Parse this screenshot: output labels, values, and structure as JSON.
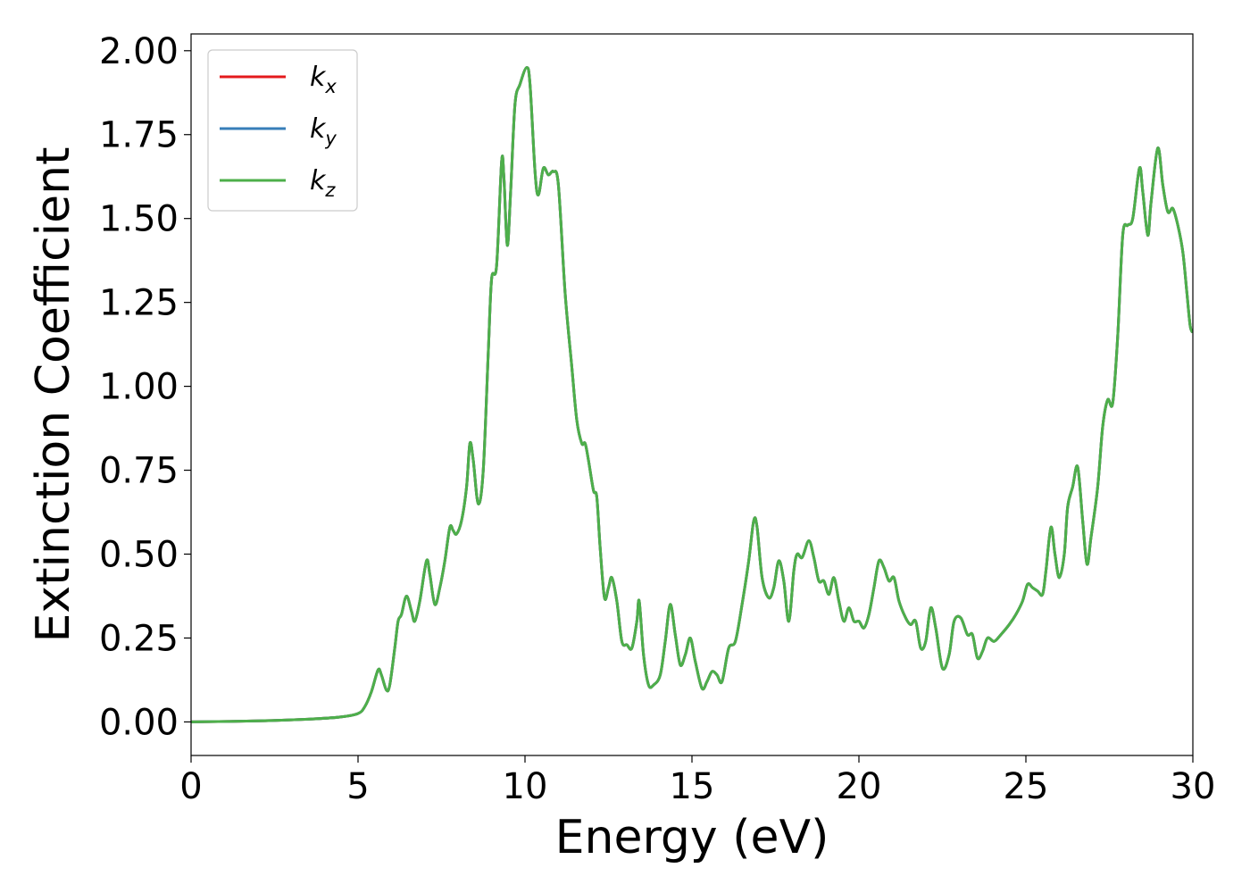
{
  "chart_data": {
    "type": "line",
    "title": "",
    "xlabel": "Energy (eV)",
    "ylabel": "Extinction Coefficient",
    "xlim": [
      0,
      30
    ],
    "ylim": [
      -0.1,
      2.05
    ],
    "xticks": [
      0,
      5,
      10,
      15,
      20,
      25,
      30
    ],
    "xtick_labels": [
      "0",
      "5",
      "10",
      "15",
      "20",
      "25",
      "30"
    ],
    "yticks": [
      0.0,
      0.25,
      0.5,
      0.75,
      1.0,
      1.25,
      1.5,
      1.75,
      2.0
    ],
    "ytick_labels": [
      "0.00",
      "0.25",
      "0.50",
      "0.75",
      "1.00",
      "1.25",
      "1.50",
      "1.75",
      "2.00"
    ],
    "grid": false,
    "legend_position": "upper-left",
    "series": [
      {
        "name": "k",
        "subscript": "x",
        "color": "#e41a1c",
        "values_same_as": "kz"
      },
      {
        "name": "k",
        "subscript": "y",
        "color": "#377eb8",
        "values_same_as": "kz"
      },
      {
        "name": "k",
        "subscript": "z",
        "color": "#4daf4a",
        "values_same_as": "kz"
      }
    ],
    "points": [
      [
        0.0,
        0.0
      ],
      [
        2.0,
        0.003
      ],
      [
        3.5,
        0.008
      ],
      [
        4.5,
        0.015
      ],
      [
        5.0,
        0.025
      ],
      [
        5.2,
        0.045
      ],
      [
        5.4,
        0.09
      ],
      [
        5.6,
        0.155
      ],
      [
        5.7,
        0.14
      ],
      [
        5.85,
        0.095
      ],
      [
        5.95,
        0.11
      ],
      [
        6.1,
        0.22
      ],
      [
        6.2,
        0.3
      ],
      [
        6.3,
        0.32
      ],
      [
        6.45,
        0.375
      ],
      [
        6.6,
        0.33
      ],
      [
        6.7,
        0.3
      ],
      [
        6.85,
        0.36
      ],
      [
        7.05,
        0.48
      ],
      [
        7.15,
        0.44
      ],
      [
        7.3,
        0.35
      ],
      [
        7.45,
        0.4
      ],
      [
        7.6,
        0.48
      ],
      [
        7.75,
        0.58
      ],
      [
        7.85,
        0.57
      ],
      [
        7.95,
        0.56
      ],
      [
        8.1,
        0.6
      ],
      [
        8.25,
        0.7
      ],
      [
        8.35,
        0.83
      ],
      [
        8.45,
        0.78
      ],
      [
        8.6,
        0.65
      ],
      [
        8.75,
        0.75
      ],
      [
        8.9,
        1.1
      ],
      [
        9.0,
        1.32
      ],
      [
        9.15,
        1.36
      ],
      [
        9.3,
        1.67
      ],
      [
        9.37,
        1.62
      ],
      [
        9.47,
        1.42
      ],
      [
        9.57,
        1.58
      ],
      [
        9.7,
        1.84
      ],
      [
        9.85,
        1.9
      ],
      [
        10.05,
        1.95
      ],
      [
        10.15,
        1.9
      ],
      [
        10.3,
        1.64
      ],
      [
        10.4,
        1.57
      ],
      [
        10.55,
        1.65
      ],
      [
        10.7,
        1.63
      ],
      [
        10.85,
        1.64
      ],
      [
        11.0,
        1.6
      ],
      [
        11.2,
        1.28
      ],
      [
        11.4,
        1.06
      ],
      [
        11.55,
        0.9
      ],
      [
        11.7,
        0.83
      ],
      [
        11.8,
        0.83
      ],
      [
        11.9,
        0.78
      ],
      [
        12.05,
        0.69
      ],
      [
        12.15,
        0.67
      ],
      [
        12.25,
        0.52
      ],
      [
        12.38,
        0.37
      ],
      [
        12.5,
        0.4
      ],
      [
        12.6,
        0.43
      ],
      [
        12.75,
        0.36
      ],
      [
        12.9,
        0.24
      ],
      [
        13.05,
        0.23
      ],
      [
        13.2,
        0.22
      ],
      [
        13.35,
        0.3
      ],
      [
        13.42,
        0.36
      ],
      [
        13.55,
        0.2
      ],
      [
        13.7,
        0.11
      ],
      [
        13.85,
        0.11
      ],
      [
        14.05,
        0.14
      ],
      [
        14.2,
        0.24
      ],
      [
        14.35,
        0.35
      ],
      [
        14.5,
        0.26
      ],
      [
        14.65,
        0.17
      ],
      [
        14.8,
        0.2
      ],
      [
        14.95,
        0.25
      ],
      [
        15.1,
        0.18
      ],
      [
        15.3,
        0.1
      ],
      [
        15.45,
        0.12
      ],
      [
        15.6,
        0.15
      ],
      [
        15.75,
        0.14
      ],
      [
        15.9,
        0.12
      ],
      [
        16.1,
        0.22
      ],
      [
        16.3,
        0.24
      ],
      [
        16.5,
        0.35
      ],
      [
        16.7,
        0.48
      ],
      [
        16.85,
        0.6
      ],
      [
        16.95,
        0.58
      ],
      [
        17.1,
        0.43
      ],
      [
        17.3,
        0.37
      ],
      [
        17.45,
        0.4
      ],
      [
        17.6,
        0.48
      ],
      [
        17.75,
        0.42
      ],
      [
        17.9,
        0.3
      ],
      [
        18.05,
        0.45
      ],
      [
        18.15,
        0.5
      ],
      [
        18.3,
        0.49
      ],
      [
        18.5,
        0.54
      ],
      [
        18.65,
        0.49
      ],
      [
        18.8,
        0.42
      ],
      [
        18.95,
        0.42
      ],
      [
        19.1,
        0.38
      ],
      [
        19.25,
        0.43
      ],
      [
        19.4,
        0.36
      ],
      [
        19.55,
        0.3
      ],
      [
        19.7,
        0.34
      ],
      [
        19.85,
        0.3
      ],
      [
        20.0,
        0.3
      ],
      [
        20.15,
        0.28
      ],
      [
        20.3,
        0.32
      ],
      [
        20.45,
        0.4
      ],
      [
        20.6,
        0.48
      ],
      [
        20.75,
        0.46
      ],
      [
        20.9,
        0.42
      ],
      [
        21.05,
        0.43
      ],
      [
        21.2,
        0.36
      ],
      [
        21.4,
        0.31
      ],
      [
        21.55,
        0.29
      ],
      [
        21.7,
        0.3
      ],
      [
        21.85,
        0.22
      ],
      [
        22.0,
        0.24
      ],
      [
        22.15,
        0.34
      ],
      [
        22.3,
        0.28
      ],
      [
        22.5,
        0.16
      ],
      [
        22.7,
        0.2
      ],
      [
        22.85,
        0.3
      ],
      [
        23.05,
        0.31
      ],
      [
        23.25,
        0.26
      ],
      [
        23.4,
        0.26
      ],
      [
        23.55,
        0.19
      ],
      [
        23.7,
        0.21
      ],
      [
        23.85,
        0.25
      ],
      [
        24.05,
        0.24
      ],
      [
        24.25,
        0.26
      ],
      [
        24.5,
        0.29
      ],
      [
        24.7,
        0.32
      ],
      [
        24.9,
        0.36
      ],
      [
        25.05,
        0.41
      ],
      [
        25.2,
        0.4
      ],
      [
        25.35,
        0.39
      ],
      [
        25.5,
        0.38
      ],
      [
        25.6,
        0.45
      ],
      [
        25.75,
        0.58
      ],
      [
        25.87,
        0.5
      ],
      [
        26.0,
        0.43
      ],
      [
        26.15,
        0.5
      ],
      [
        26.25,
        0.64
      ],
      [
        26.4,
        0.7
      ],
      [
        26.55,
        0.76
      ],
      [
        26.7,
        0.6
      ],
      [
        26.83,
        0.47
      ],
      [
        26.95,
        0.55
      ],
      [
        27.15,
        0.7
      ],
      [
        27.3,
        0.88
      ],
      [
        27.45,
        0.96
      ],
      [
        27.6,
        0.95
      ],
      [
        27.75,
        1.15
      ],
      [
        27.9,
        1.45
      ],
      [
        28.05,
        1.48
      ],
      [
        28.2,
        1.5
      ],
      [
        28.4,
        1.65
      ],
      [
        28.5,
        1.58
      ],
      [
        28.65,
        1.45
      ],
      [
        28.75,
        1.55
      ],
      [
        28.95,
        1.71
      ],
      [
        29.1,
        1.6
      ],
      [
        29.25,
        1.52
      ],
      [
        29.4,
        1.53
      ],
      [
        29.55,
        1.48
      ],
      [
        29.7,
        1.4
      ],
      [
        29.82,
        1.28
      ],
      [
        29.92,
        1.18
      ],
      [
        30.0,
        1.16
      ]
    ]
  }
}
